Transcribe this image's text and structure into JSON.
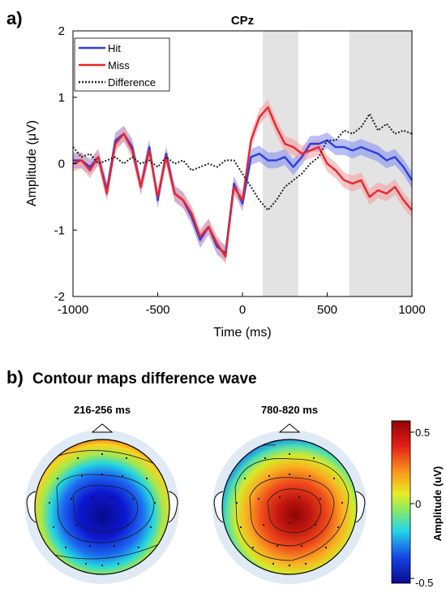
{
  "panel_a_label": "a)",
  "panel_b_label": "b)",
  "panel_b_title": "Contour maps difference wave",
  "chart_data": {
    "type": "line",
    "title": "CPz",
    "xlabel": "Time (ms)",
    "ylabel": "Amplitude (μV)",
    "xlim": [
      -1000,
      1000
    ],
    "ylim": [
      -2,
      2
    ],
    "xticks": [
      "-1000",
      "-500",
      "0",
      "500",
      "1000"
    ],
    "yticks": [
      "-2",
      "-1",
      "0",
      "1",
      "2"
    ],
    "shaded_windows": [
      [
        120,
        330
      ],
      [
        630,
        1000
      ]
    ],
    "legend_position": "top-left",
    "series": [
      {
        "name": "Hit",
        "color": "#2a3fe0",
        "style": "solid",
        "x": [
          -1000,
          -950,
          -900,
          -850,
          -800,
          -750,
          -700,
          -650,
          -600,
          -550,
          -500,
          -450,
          -400,
          -350,
          -300,
          -250,
          -200,
          -150,
          -100,
          -50,
          0,
          50,
          100,
          150,
          200,
          250,
          300,
          350,
          400,
          450,
          500,
          550,
          600,
          650,
          700,
          750,
          800,
          850,
          900,
          950,
          1000
        ],
        "y": [
          0.05,
          0.05,
          -0.05,
          0.1,
          -0.4,
          0.35,
          0.45,
          0.25,
          -0.35,
          0.25,
          -0.55,
          0.15,
          -0.45,
          -0.55,
          -0.8,
          -1.15,
          -0.95,
          -1.25,
          -1.35,
          -0.3,
          -0.6,
          0.1,
          0.15,
          0.05,
          0.05,
          0.1,
          -0.05,
          0.1,
          0.3,
          0.3,
          0.35,
          0.25,
          0.25,
          0.2,
          0.25,
          0.2,
          0.15,
          0.05,
          0.1,
          -0.05,
          -0.25
        ]
      },
      {
        "name": "Miss",
        "color": "#e8262b",
        "style": "solid",
        "x": [
          -1000,
          -950,
          -900,
          -850,
          -800,
          -750,
          -700,
          -650,
          -600,
          -550,
          -500,
          -450,
          -400,
          -350,
          -300,
          -250,
          -200,
          -150,
          -100,
          -50,
          0,
          50,
          100,
          150,
          200,
          250,
          300,
          350,
          400,
          450,
          500,
          550,
          600,
          650,
          700,
          750,
          800,
          850,
          900,
          950,
          1000
        ],
        "y": [
          0.0,
          0.05,
          -0.1,
          0.1,
          -0.45,
          0.3,
          0.45,
          0.2,
          -0.35,
          0.2,
          -0.5,
          0.1,
          -0.45,
          -0.55,
          -0.75,
          -1.1,
          -0.95,
          -1.2,
          -1.4,
          -0.35,
          -0.55,
          0.35,
          0.7,
          0.85,
          0.55,
          0.3,
          0.25,
          0.15,
          0.2,
          0.25,
          0.0,
          -0.1,
          -0.25,
          -0.3,
          -0.25,
          -0.5,
          -0.4,
          -0.45,
          -0.35,
          -0.55,
          -0.7
        ]
      },
      {
        "name": "Difference",
        "color": "#222222",
        "style": "dotted",
        "x": [
          -1000,
          -950,
          -900,
          -850,
          -800,
          -750,
          -700,
          -650,
          -600,
          -550,
          -500,
          -450,
          -400,
          -350,
          -300,
          -250,
          -200,
          -150,
          -100,
          -50,
          0,
          50,
          100,
          150,
          200,
          250,
          300,
          350,
          400,
          450,
          500,
          550,
          600,
          650,
          700,
          750,
          800,
          850,
          900,
          950,
          1000
        ],
        "y": [
          0.25,
          0.1,
          0.15,
          0.0,
          0.05,
          0.1,
          0.0,
          0.1,
          0.0,
          0.05,
          -0.05,
          0.1,
          0.0,
          0.05,
          -0.1,
          -0.05,
          0.0,
          -0.05,
          0.05,
          0.05,
          -0.15,
          -0.35,
          -0.55,
          -0.7,
          -0.55,
          -0.35,
          -0.25,
          -0.15,
          0.0,
          0.1,
          0.35,
          0.35,
          0.5,
          0.45,
          0.55,
          0.75,
          0.5,
          0.6,
          0.45,
          0.5,
          0.45
        ]
      }
    ],
    "bands": [
      {
        "series": "Hit",
        "color": "#7f8af0",
        "halfwidth": 0.12
      },
      {
        "series": "Miss",
        "color": "#f59a9c",
        "halfwidth": 0.12
      }
    ]
  },
  "topomaps": [
    {
      "label": "216-256 ms",
      "pattern": "negative-center"
    },
    {
      "label": "780-820 ms",
      "pattern": "positive-center"
    }
  ],
  "colorbar": {
    "label": "Amplitude (uV)",
    "ticks": [
      "0.5",
      "0",
      "-0.5"
    ],
    "range": [
      -0.5,
      0.5
    ]
  }
}
